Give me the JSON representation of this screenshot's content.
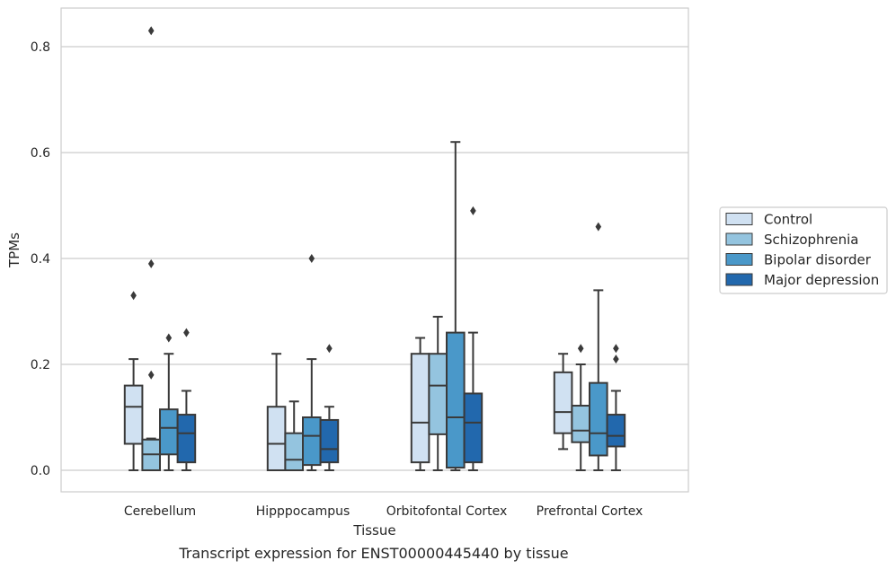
{
  "caption": "Transcript expression for ENST00000445440 by tissue",
  "chart_data": {
    "type": "boxplot",
    "title": "",
    "xlabel": "Tissue",
    "ylabel": "TPMs",
    "ylim": [
      -0.04,
      0.875
    ],
    "yticks": [
      "0.0",
      "0.2",
      "0.4",
      "0.6",
      "0.8"
    ],
    "ytick_values": [
      0.0,
      0.2,
      0.4,
      0.6,
      0.8
    ],
    "grid": "horizontal",
    "legend_position": "right",
    "categories": [
      "Cerebellum",
      "Hipppocampus",
      "Orbitofontal Cortex",
      "Prefrontal Cortex"
    ],
    "series": [
      {
        "name": "Control",
        "color": "#d0e1f2",
        "boxes": [
          {
            "whislo": 0.0,
            "q1": 0.05,
            "med": 0.12,
            "q3": 0.16,
            "whishi": 0.21,
            "fliers": [
              0.33
            ]
          },
          {
            "whislo": 0.0,
            "q1": 0.0,
            "med": 0.05,
            "q3": 0.12,
            "whishi": 0.22,
            "fliers": []
          },
          {
            "whislo": 0.0,
            "q1": 0.015,
            "med": 0.09,
            "q3": 0.22,
            "whishi": 0.25,
            "fliers": []
          },
          {
            "whislo": 0.04,
            "q1": 0.07,
            "med": 0.11,
            "q3": 0.185,
            "whishi": 0.22,
            "fliers": []
          }
        ]
      },
      {
        "name": "Schizophrenia",
        "color": "#94c4df",
        "boxes": [
          {
            "whislo": 0.0,
            "q1": 0.0,
            "med": 0.03,
            "q3": 0.058,
            "whishi": 0.06,
            "fliers": [
              0.18,
              0.39,
              0.83
            ]
          },
          {
            "whislo": 0.0,
            "q1": 0.0,
            "med": 0.02,
            "q3": 0.07,
            "whishi": 0.13,
            "fliers": []
          },
          {
            "whislo": 0.0,
            "q1": 0.068,
            "med": 0.16,
            "q3": 0.22,
            "whishi": 0.29,
            "fliers": []
          },
          {
            "whislo": 0.0,
            "q1": 0.053,
            "med": 0.075,
            "q3": 0.122,
            "whishi": 0.2,
            "fliers": [
              0.23
            ]
          }
        ]
      },
      {
        "name": "Bipolar disorder",
        "color": "#4a98c9",
        "boxes": [
          {
            "whislo": 0.0,
            "q1": 0.03,
            "med": 0.08,
            "q3": 0.115,
            "whishi": 0.22,
            "fliers": [
              0.25
            ]
          },
          {
            "whislo": 0.0,
            "q1": 0.01,
            "med": 0.065,
            "q3": 0.1,
            "whishi": 0.21,
            "fliers": [
              0.4
            ]
          },
          {
            "whislo": 0.0,
            "q1": 0.005,
            "med": 0.1,
            "q3": 0.26,
            "whishi": 0.62,
            "fliers": []
          },
          {
            "whislo": 0.0,
            "q1": 0.028,
            "med": 0.07,
            "q3": 0.165,
            "whishi": 0.34,
            "fliers": [
              0.46
            ]
          }
        ]
      },
      {
        "name": "Major depression",
        "color": "#2268ad",
        "boxes": [
          {
            "whislo": 0.0,
            "q1": 0.015,
            "med": 0.07,
            "q3": 0.105,
            "whishi": 0.15,
            "fliers": [
              0.26
            ]
          },
          {
            "whislo": 0.0,
            "q1": 0.015,
            "med": 0.04,
            "q3": 0.095,
            "whishi": 0.12,
            "fliers": [
              0.23
            ]
          },
          {
            "whislo": 0.0,
            "q1": 0.015,
            "med": 0.09,
            "q3": 0.145,
            "whishi": 0.26,
            "fliers": [
              0.49
            ]
          },
          {
            "whislo": 0.0,
            "q1": 0.045,
            "med": 0.065,
            "q3": 0.105,
            "whishi": 0.15,
            "fliers": [
              0.21,
              0.23
            ]
          }
        ]
      }
    ]
  }
}
